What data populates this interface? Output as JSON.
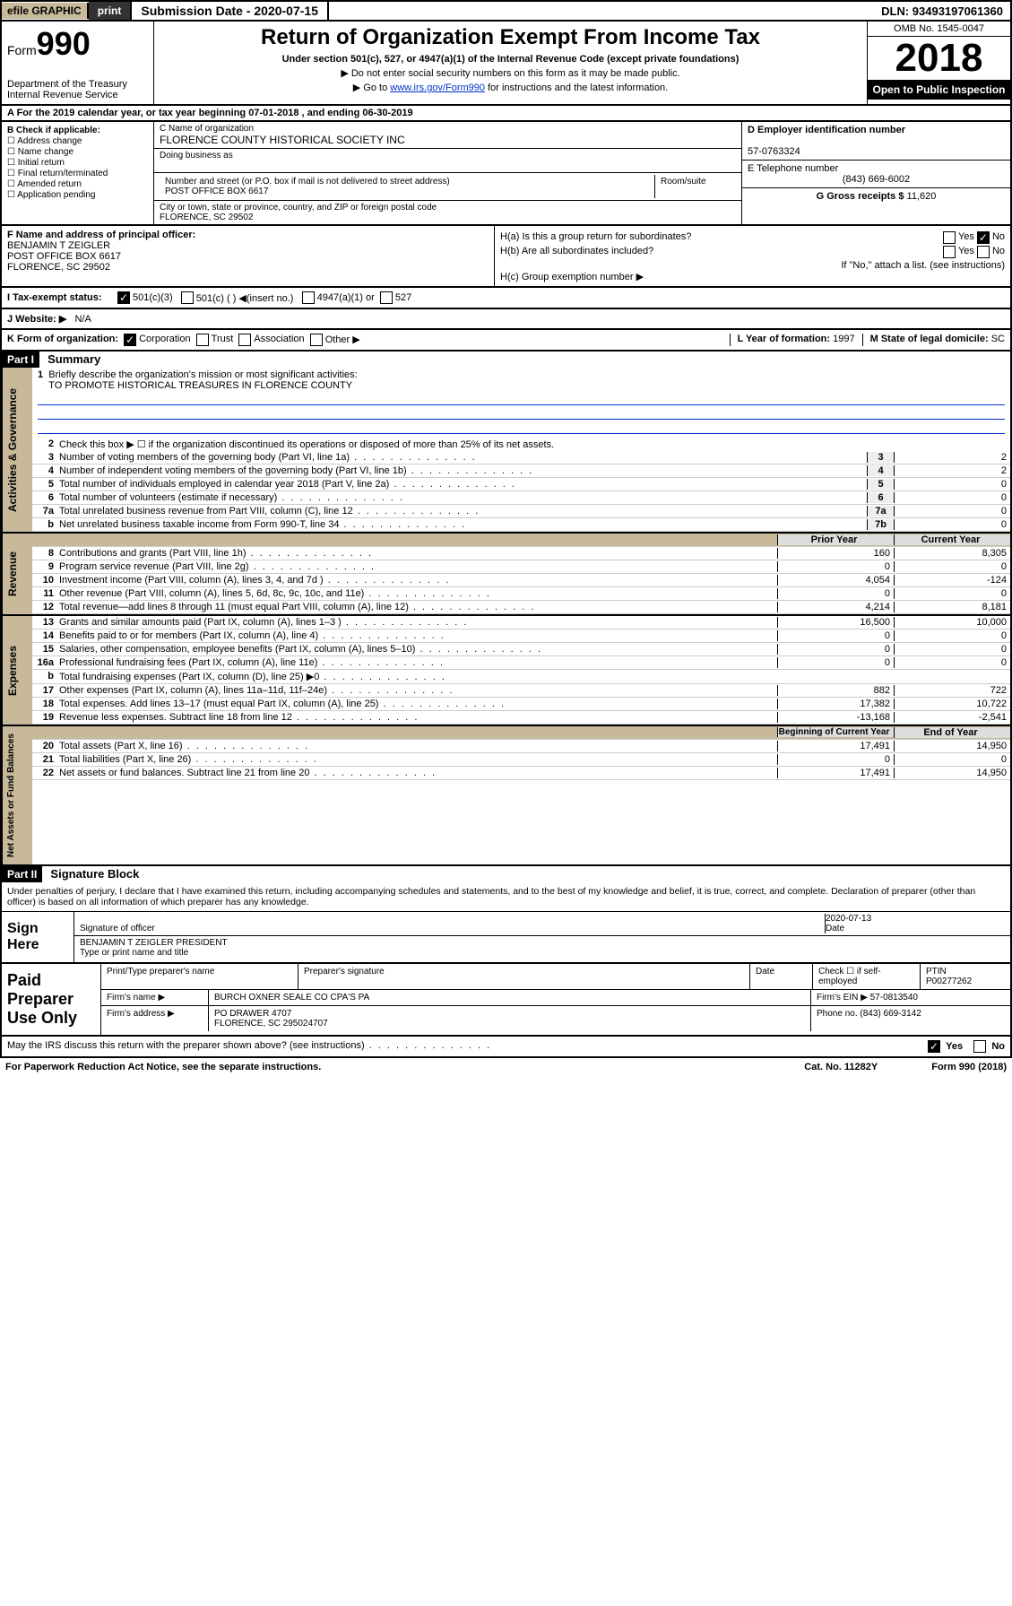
{
  "topbar": {
    "efile": "efile GRAPHIC",
    "print": "print",
    "subdate_label": "Submission Date - 2020-07-15",
    "dln": "DLN: 93493197061360"
  },
  "header": {
    "form_prefix": "Form",
    "form_number": "990",
    "dept": "Department of the Treasury\nInternal Revenue Service",
    "title": "Return of Organization Exempt From Income Tax",
    "sub1": "Under section 501(c), 527, or 4947(a)(1) of the Internal Revenue Code (except private foundations)",
    "sub2_prefix": "▶ Do not enter social security numbers on this form as it may be made public.",
    "sub3_prefix": "▶ Go to ",
    "sub3_link": "www.irs.gov/Form990",
    "sub3_suffix": " for instructions and the latest information.",
    "omb": "OMB No. 1545-0047",
    "year": "2018",
    "open": "Open to Public Inspection"
  },
  "rowA": "A  For the 2019 calendar year, or tax year beginning 07-01-2018    , and ending 06-30-2019",
  "boxB": {
    "label": "B Check if applicable:",
    "opts": [
      "Address change",
      "Name change",
      "Initial return",
      "Final return/terminated",
      "Amended return",
      "Application pending"
    ]
  },
  "boxC": {
    "name_label": "C Name of organization",
    "name": "FLORENCE COUNTY HISTORICAL SOCIETY INC",
    "dba_label": "Doing business as",
    "dba": "",
    "addr_label": "Number and street (or P.O. box if mail is not delivered to street address)",
    "room_label": "Room/suite",
    "addr": "POST OFFICE BOX 6617",
    "city_label": "City or town, state or province, country, and ZIP or foreign postal code",
    "city": "FLORENCE, SC  29502"
  },
  "boxD": {
    "label": "D Employer identification number",
    "val": "57-0763324"
  },
  "boxE": {
    "label": "E Telephone number",
    "val": "(843) 669-6002"
  },
  "boxG": {
    "label": "G Gross receipts $",
    "val": "11,620"
  },
  "boxF": {
    "label": "F  Name and address of principal officer:",
    "name": "BENJAMIN T ZEIGLER",
    "addr1": "POST OFFICE BOX 6617",
    "addr2": "FLORENCE, SC  29502"
  },
  "boxH": {
    "a": "H(a)  Is this a group return for subordinates?",
    "a_yes": "Yes",
    "a_no": "No",
    "b": "H(b)  Are all subordinates included?",
    "b_yes": "Yes",
    "b_no": "No",
    "b_note": "If \"No,\" attach a list. (see instructions)",
    "c": "H(c)  Group exemption number ▶"
  },
  "taxstatus": {
    "label": "I    Tax-exempt status:",
    "opt1": "501(c)(3)",
    "opt2": "501(c) (  ) ◀(insert no.)",
    "opt3": "4947(a)(1) or",
    "opt4": "527"
  },
  "website": {
    "label": "J    Website: ▶",
    "val": "N/A"
  },
  "rowK": {
    "k_label": "K Form of organization:",
    "k_opts": [
      "Corporation",
      "Trust",
      "Association",
      "Other ▶"
    ],
    "l_label": "L Year of formation:",
    "l_val": "1997",
    "m_label": "M State of legal domicile:",
    "m_val": "SC"
  },
  "part1": {
    "hdr": "Part I",
    "title": "Summary",
    "side1": "Activities & Governance",
    "side2": "Revenue",
    "side3": "Expenses",
    "side4": "Net Assets or Fund Balances",
    "l1a": "Briefly describe the organization's mission or most significant activities:",
    "l1b": "TO PROMOTE HISTORICAL TREASURES IN FLORENCE COUNTY",
    "l2": "Check this box ▶ ☐  if the organization discontinued its operations or disposed of more than 25% of its net assets.",
    "lines_gov": [
      {
        "n": "3",
        "t": "Number of voting members of the governing body (Part VI, line 1a)",
        "b": "3",
        "v": "2"
      },
      {
        "n": "4",
        "t": "Number of independent voting members of the governing body (Part VI, line 1b)",
        "b": "4",
        "v": "2"
      },
      {
        "n": "5",
        "t": "Total number of individuals employed in calendar year 2018 (Part V, line 2a)",
        "b": "5",
        "v": "0"
      },
      {
        "n": "6",
        "t": "Total number of volunteers (estimate if necessary)",
        "b": "6",
        "v": "0"
      },
      {
        "n": "7a",
        "t": "Total unrelated business revenue from Part VIII, column (C), line 12",
        "b": "7a",
        "v": "0"
      },
      {
        "n": "b",
        "t": "Net unrelated business taxable income from Form 990-T, line 34",
        "b": "7b",
        "v": "0"
      }
    ],
    "py_hdr": "Prior Year",
    "cy_hdr": "Current Year",
    "lines_rev": [
      {
        "n": "8",
        "t": "Contributions and grants (Part VIII, line 1h)",
        "py": "160",
        "cy": "8,305"
      },
      {
        "n": "9",
        "t": "Program service revenue (Part VIII, line 2g)",
        "py": "0",
        "cy": "0"
      },
      {
        "n": "10",
        "t": "Investment income (Part VIII, column (A), lines 3, 4, and 7d )",
        "py": "4,054",
        "cy": "-124"
      },
      {
        "n": "11",
        "t": "Other revenue (Part VIII, column (A), lines 5, 6d, 8c, 9c, 10c, and 11e)",
        "py": "0",
        "cy": "0"
      },
      {
        "n": "12",
        "t": "Total revenue—add lines 8 through 11 (must equal Part VIII, column (A), line 12)",
        "py": "4,214",
        "cy": "8,181"
      }
    ],
    "lines_exp": [
      {
        "n": "13",
        "t": "Grants and similar amounts paid (Part IX, column (A), lines 1–3 )",
        "py": "16,500",
        "cy": "10,000"
      },
      {
        "n": "14",
        "t": "Benefits paid to or for members (Part IX, column (A), line 4)",
        "py": "0",
        "cy": "0"
      },
      {
        "n": "15",
        "t": "Salaries, other compensation, employee benefits (Part IX, column (A), lines 5–10)",
        "py": "0",
        "cy": "0"
      },
      {
        "n": "16a",
        "t": "Professional fundraising fees (Part IX, column (A), line 11e)",
        "py": "0",
        "cy": "0"
      },
      {
        "n": "b",
        "t": "Total fundraising expenses (Part IX, column (D), line 25) ▶0",
        "py": "",
        "cy": ""
      },
      {
        "n": "17",
        "t": "Other expenses (Part IX, column (A), lines 11a–11d, 11f–24e)",
        "py": "882",
        "cy": "722"
      },
      {
        "n": "18",
        "t": "Total expenses. Add lines 13–17 (must equal Part IX, column (A), line 25)",
        "py": "17,382",
        "cy": "10,722"
      },
      {
        "n": "19",
        "t": "Revenue less expenses. Subtract line 18 from line 12",
        "py": "-13,168",
        "cy": "-2,541"
      }
    ],
    "bcy_hdr": "Beginning of Current Year",
    "eoy_hdr": "End of Year",
    "lines_net": [
      {
        "n": "20",
        "t": "Total assets (Part X, line 16)",
        "py": "17,491",
        "cy": "14,950"
      },
      {
        "n": "21",
        "t": "Total liabilities (Part X, line 26)",
        "py": "0",
        "cy": "0"
      },
      {
        "n": "22",
        "t": "Net assets or fund balances. Subtract line 21 from line 20",
        "py": "17,491",
        "cy": "14,950"
      }
    ]
  },
  "part2": {
    "hdr": "Part II",
    "title": "Signature Block",
    "decl": "Under penalties of perjury, I declare that I have examined this return, including accompanying schedules and statements, and to the best of my knowledge and belief, it is true, correct, and complete. Declaration of preparer (other than officer) is based on all information of which preparer has any knowledge."
  },
  "sign": {
    "label": "Sign Here",
    "sig_label": "Signature of officer",
    "date": "2020-07-13",
    "date_label": "Date",
    "name": "BENJAMIN T ZEIGLER PRESIDENT",
    "name_label": "Type or print name and title"
  },
  "paid": {
    "label": "Paid Preparer Use Only",
    "h_name": "Print/Type preparer's name",
    "h_sig": "Preparer's signature",
    "h_date": "Date",
    "h_self": "Check ☐ if self-employed",
    "h_ptin": "PTIN",
    "ptin": "P00277262",
    "firm_label": "Firm's name    ▶",
    "firm": "BURCH OXNER SEALE CO CPA'S PA",
    "ein_label": "Firm's EIN ▶",
    "ein": "57-0813540",
    "addr_label": "Firm's address ▶",
    "addr": "PO DRAWER 4707",
    "addr2": "FLORENCE, SC  295024707",
    "phone_label": "Phone no.",
    "phone": "(843) 669-3142"
  },
  "footer": {
    "q": "May the IRS discuss this return with the preparer shown above? (see instructions)",
    "yes": "Yes",
    "no": "No"
  },
  "bottom": {
    "pra": "For Paperwork Reduction Act Notice, see the separate instructions.",
    "cat": "Cat. No. 11282Y",
    "form": "Form 990 (2018)"
  }
}
